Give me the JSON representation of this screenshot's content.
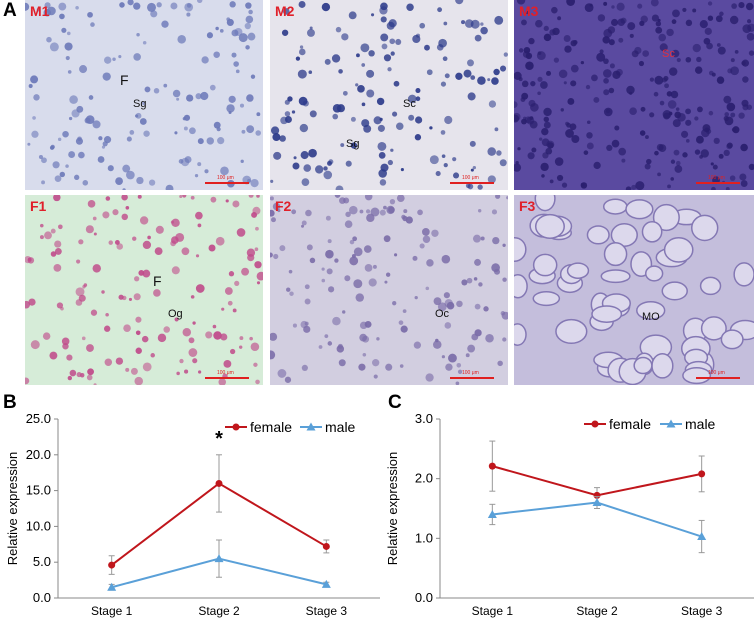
{
  "panel_labels": {
    "A": "A",
    "B": "B",
    "C": "C"
  },
  "micrographs": [
    {
      "label": "M1",
      "scale": "100 μm",
      "bg": "#d8dcec",
      "tissue": "#6b78b8",
      "annotations": [
        {
          "text": "F",
          "big": true
        },
        {
          "text": "Sg",
          "big": false
        }
      ]
    },
    {
      "label": "M2",
      "scale": "100 μm",
      "bg": "#e6e4ec",
      "tissue": "#2c3a8a",
      "annotations": [
        {
          "text": "Sc",
          "big": false
        },
        {
          "text": "Sg",
          "big": false
        }
      ]
    },
    {
      "label": "M3",
      "scale": "100 μm",
      "bg": "#5a4aa0",
      "tissue": "#2a1f6e",
      "annotations": [
        {
          "text": "Sc",
          "big": false
        }
      ]
    },
    {
      "label": "F1",
      "scale": "100 μm",
      "bg": "#d6ecd8",
      "tissue": "#c04a8a",
      "annotations": [
        {
          "text": "F",
          "big": true
        },
        {
          "text": "Og",
          "big": false
        }
      ]
    },
    {
      "label": "F2",
      "scale": "100 μm",
      "bg": "#d2cee0",
      "tissue": "#7a6ca8",
      "annotations": [
        {
          "text": "Oc",
          "big": false
        }
      ]
    },
    {
      "label": "F3",
      "scale": "100 μm",
      "bg": "#c4bedc",
      "tissue": "#8478b4",
      "annotations": [
        {
          "text": "MO",
          "big": false
        }
      ]
    }
  ],
  "chart_data": [
    {
      "type": "line",
      "categories": [
        "Stage 1",
        "Stage 2",
        "Stage 3"
      ],
      "ylabel": "Relative expression",
      "ylim": [
        0,
        25
      ],
      "yticks": [
        "0.0",
        "5.0",
        "10.0",
        "15.0",
        "20.0",
        "25.0"
      ],
      "ytick_values": [
        0,
        5,
        10,
        15,
        20,
        25
      ],
      "legend_position": "top-right",
      "annotation": {
        "text": "*",
        "category": "Stage 2",
        "value": 22.5
      },
      "series": [
        {
          "name": "female",
          "color": "#c0161c",
          "marker": "circle",
          "values": [
            4.6,
            16.0,
            7.2
          ],
          "errors": [
            1.3,
            4.0,
            0.9
          ]
        },
        {
          "name": "male",
          "color": "#5aa0d8",
          "marker": "triangle",
          "values": [
            1.5,
            5.5,
            1.9
          ],
          "errors": [
            0.4,
            2.6,
            0.3
          ]
        }
      ]
    },
    {
      "type": "line",
      "categories": [
        "Stage 1",
        "Stage 2",
        "Stage 3"
      ],
      "ylabel": "Relative expression",
      "ylim": [
        0,
        3
      ],
      "yticks": [
        "0.0",
        "1.0",
        "2.0",
        "3.0"
      ],
      "ytick_values": [
        0,
        1,
        2,
        3
      ],
      "legend_position": "top-right",
      "series": [
        {
          "name": "female",
          "color": "#c0161c",
          "marker": "circle",
          "values": [
            2.21,
            1.72,
            2.08
          ],
          "errors": [
            0.42,
            0.13,
            0.3
          ]
        },
        {
          "name": "male",
          "color": "#5aa0d8",
          "marker": "triangle",
          "values": [
            1.4,
            1.6,
            1.03
          ],
          "errors": [
            0.17,
            0.1,
            0.27
          ]
        }
      ]
    }
  ]
}
